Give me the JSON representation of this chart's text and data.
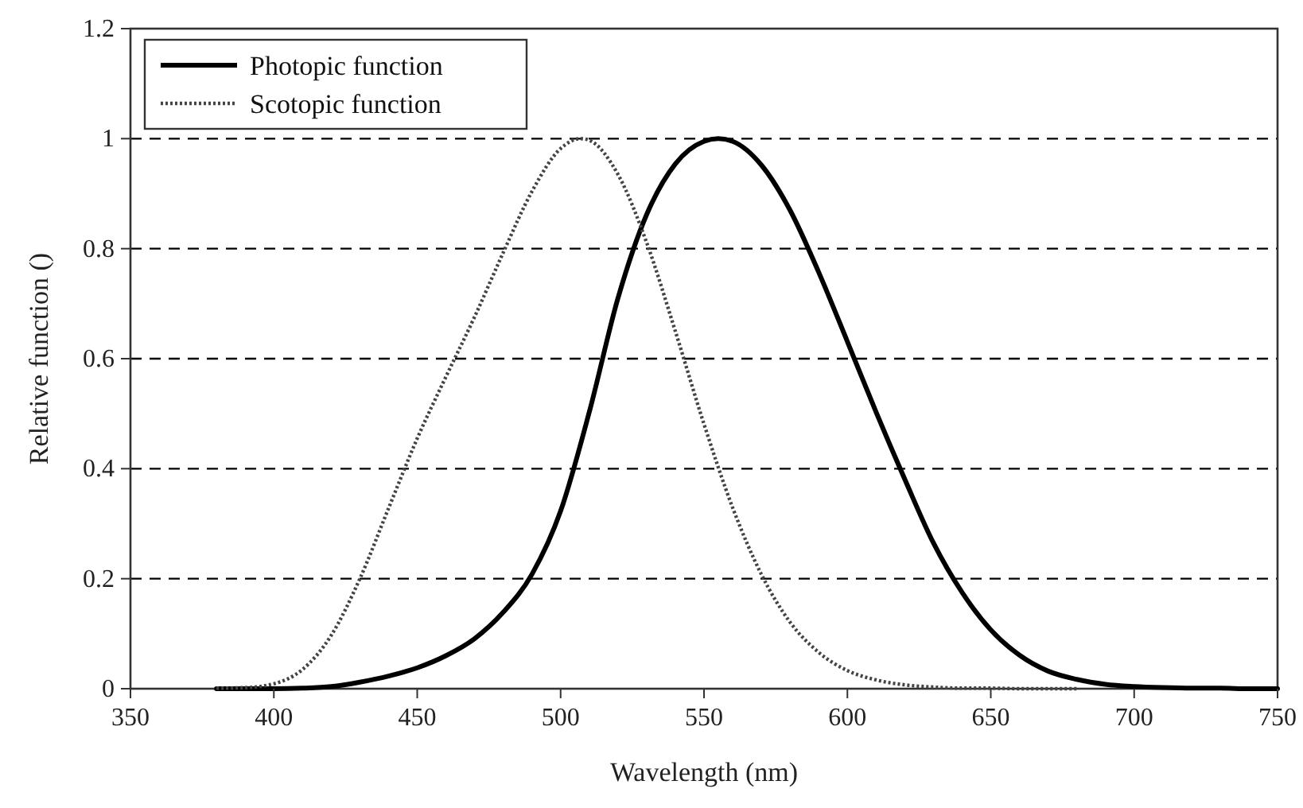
{
  "chart_data": {
    "type": "line",
    "xlabel": "Wavelength (nm)",
    "ylabel": "Relative function ()",
    "xlim": [
      350,
      750
    ],
    "xticks": [
      350,
      400,
      450,
      500,
      550,
      600,
      650,
      700,
      750
    ],
    "ylim": [
      0,
      1.2
    ],
    "yticks": [
      0,
      0.2,
      0.4,
      0.6,
      0.8,
      1,
      1.2
    ],
    "grid": "y",
    "legend": "top left",
    "series": [
      {
        "name": "Photopic function",
        "color": "#000000",
        "line_style": "solid",
        "x": [
          380,
          390,
          400,
          410,
          420,
          430,
          440,
          450,
          460,
          470,
          480,
          490,
          500,
          510,
          520,
          530,
          540,
          550,
          555,
          560,
          570,
          580,
          590,
          600,
          610,
          620,
          630,
          640,
          650,
          660,
          670,
          680,
          690,
          700,
          710,
          720,
          730,
          740,
          750
        ],
        "values": [
          0.0,
          0.0,
          0.0,
          0.001,
          0.004,
          0.012,
          0.023,
          0.038,
          0.06,
          0.091,
          0.139,
          0.208,
          0.323,
          0.503,
          0.71,
          0.862,
          0.954,
          0.995,
          1.0,
          0.995,
          0.952,
          0.87,
          0.757,
          0.631,
          0.503,
          0.381,
          0.265,
          0.175,
          0.107,
          0.061,
          0.032,
          0.017,
          0.008,
          0.004,
          0.002,
          0.001,
          0.001,
          0.0,
          0.0
        ]
      },
      {
        "name": "Scotopic function",
        "color": "#444444",
        "line_style": "dotted",
        "x": [
          380,
          390,
          400,
          410,
          420,
          430,
          440,
          450,
          460,
          470,
          480,
          490,
          500,
          507,
          510,
          520,
          530,
          540,
          550,
          560,
          570,
          580,
          590,
          600,
          610,
          620,
          630,
          640,
          650,
          660,
          670,
          680
        ],
        "values": [
          0.001,
          0.002,
          0.009,
          0.035,
          0.097,
          0.2,
          0.328,
          0.455,
          0.567,
          0.676,
          0.793,
          0.904,
          0.982,
          1.0,
          0.997,
          0.935,
          0.811,
          0.65,
          0.481,
          0.329,
          0.208,
          0.121,
          0.066,
          0.033,
          0.016,
          0.007,
          0.003,
          0.001,
          0.001,
          0.0,
          0.0,
          0.0
        ]
      }
    ]
  }
}
